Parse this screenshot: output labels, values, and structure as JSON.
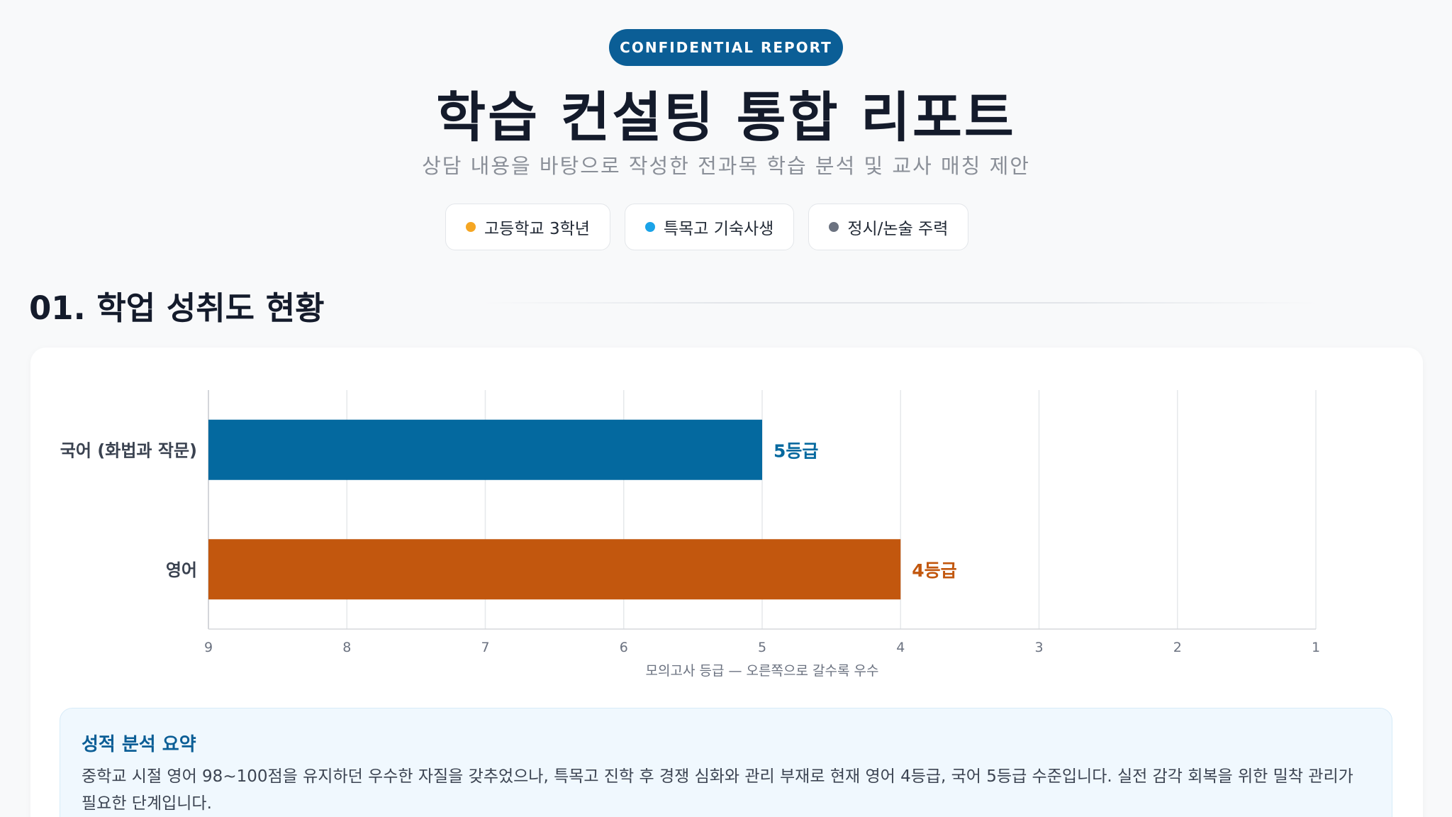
{
  "header": {
    "badge": "CONFIDENTIAL REPORT",
    "title": "학습 컨설팅 통합 리포트",
    "subtitle": "상담 내용을 바탕으로 작성한 전과목 학습 분석 및 교사 매칭 제안"
  },
  "chips": [
    {
      "label": "고등학교 3학년",
      "color": "#f5a623"
    },
    {
      "label": "특목고 기숙사생",
      "color": "#1aa3e8"
    },
    {
      "label": "정시/논술 주력",
      "color": "#6b7280"
    }
  ],
  "section": {
    "title": "01. 학업 성취도 현황"
  },
  "chart_data": {
    "type": "bar",
    "orientation": "horizontal",
    "categories": [
      "국어 (화법과 작문)",
      "영어"
    ],
    "values": [
      5,
      4
    ],
    "value_labels": [
      "5등급",
      "4등급"
    ],
    "colors": [
      "#04699f",
      "#c2570e"
    ],
    "xlabel": "모의고사 등급 — 오른쪽으로 갈수록 우수",
    "ylabel": "",
    "title": "",
    "xlim": [
      9,
      1
    ],
    "xticks": [
      9,
      8,
      7,
      6,
      5,
      4,
      3,
      2,
      1
    ],
    "x_reversed": true,
    "grid": true
  },
  "summary": {
    "title": "성적 분석 요약",
    "body": "중학교 시절 영어 98~100점을 유지하던 우수한 자질을 갖추었으나, 특목고 진학 후 경쟁 심화와 관리 부재로 현재 영어 4등급, 국어 5등급 수준입니다. 실전 감각 회복을 위한 밀착 관리가 필요한 단계입니다."
  }
}
